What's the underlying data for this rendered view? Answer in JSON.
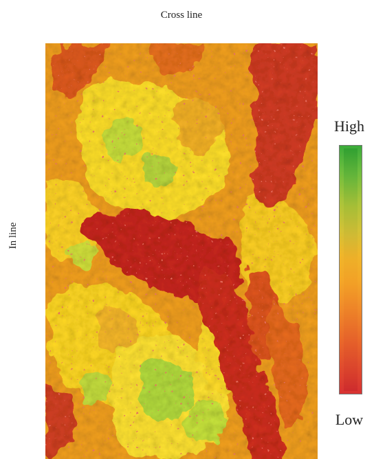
{
  "figure": {
    "top_axis_label": "Cross line",
    "left_axis_label": "In line",
    "legend": {
      "high_label": "High",
      "low_label": "Low"
    }
  },
  "colors": {
    "high": "#3aab3a",
    "mid_high": "#d2c236",
    "mid": "#f4a828",
    "mid_low": "#ea6a2a",
    "low": "#d83232",
    "background_yellow": "#ffe02a",
    "background_orange": "#f2a020",
    "channel_red": "#c8281e"
  }
}
